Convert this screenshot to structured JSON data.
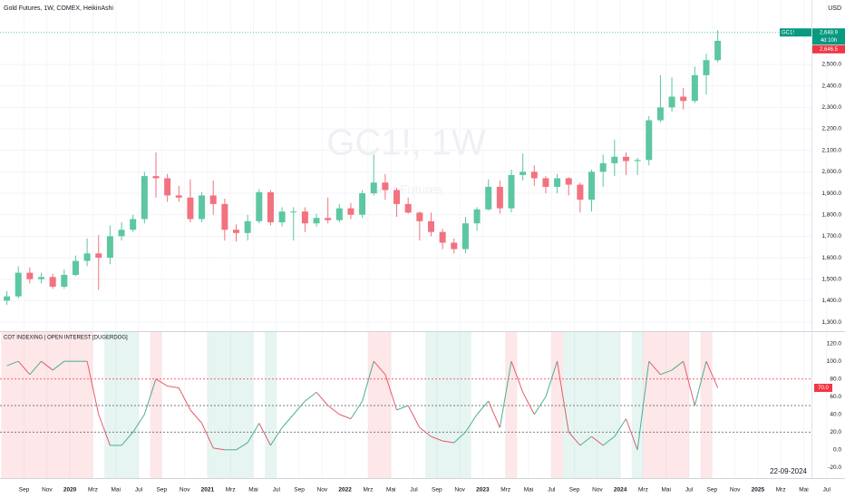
{
  "chart_data": [
    {
      "type": "candlestick",
      "title": "Gold Futures, 1W, COMEX, HeikinAshi",
      "watermark": "GC1!, 1W",
      "watermark_subtitle": "Gold Futures",
      "currency": "USD",
      "up_color": "#5cc7a0",
      "down_color": "#f2727f",
      "x": [
        -5.5,
        -4.5,
        -3.5,
        -2.5,
        -1.5,
        -0.5,
        0.5,
        1.5,
        2.5,
        3.5,
        4.5,
        5.5,
        6.5,
        7.5,
        8.5,
        9.5,
        10.5,
        11.5,
        12.5,
        13.5,
        14.5,
        15.5,
        16.5,
        17.5,
        18.5,
        19.5,
        20.5,
        21.5,
        22.5,
        23.5,
        24.5,
        25.5,
        26.5,
        27.5,
        28.5,
        29.5,
        30.5,
        31.5,
        32.5,
        33.5,
        34.5,
        35.5,
        36.5,
        37.5,
        38.5,
        39.5,
        40.5,
        41.5,
        42.5,
        43.5,
        44.5,
        45.5,
        46.5,
        47.5,
        48.5,
        49.5,
        50.5,
        51.5,
        52.5,
        53.5,
        54.5,
        55.5,
        56.5
      ],
      "open": [
        1400,
        1420,
        1530,
        1500,
        1510,
        1465,
        1520,
        1585,
        1620,
        1600,
        1700,
        1730,
        1780,
        1980,
        1970,
        1890,
        1880,
        1780,
        1890,
        1850,
        1730,
        1715,
        1770,
        1905,
        1765,
        1815,
        1815,
        1760,
        1785,
        1775,
        1830,
        1800,
        1900,
        1950,
        1915,
        1850,
        1810,
        1770,
        1720,
        1670,
        1640,
        1760,
        1825,
        1930,
        1830,
        1985,
        2000,
        1970,
        1930,
        1970,
        1940,
        1870,
        2000,
        2040,
        2070,
        2050,
        2055,
        2240,
        2300,
        2350,
        2330,
        2450,
        2520
      ],
      "high": [
        1445,
        1560,
        1555,
        1530,
        1525,
        1545,
        1610,
        1690,
        1705,
        1750,
        1765,
        1800,
        2000,
        2090,
        1990,
        1935,
        1965,
        1905,
        1960,
        1875,
        1755,
        1800,
        1920,
        1915,
        1835,
        1835,
        1835,
        1805,
        1880,
        1850,
        1855,
        1915,
        2080,
        1990,
        1925,
        1880,
        1815,
        1810,
        1735,
        1690,
        1790,
        1835,
        1965,
        1960,
        2010,
        2085,
        2030,
        1980,
        1990,
        1975,
        1950,
        2010,
        2080,
        2150,
        2090,
        2065,
        2260,
        2450,
        2440,
        2390,
        2490,
        2550,
        2660
      ],
      "low": [
        1380,
        1410,
        1480,
        1480,
        1455,
        1455,
        1515,
        1560,
        1450,
        1570,
        1680,
        1720,
        1760,
        1880,
        1860,
        1860,
        1765,
        1765,
        1800,
        1680,
        1675,
        1680,
        1760,
        1750,
        1745,
        1680,
        1720,
        1745,
        1760,
        1765,
        1780,
        1785,
        1890,
        1870,
        1790,
        1805,
        1680,
        1700,
        1640,
        1620,
        1620,
        1725,
        1820,
        1805,
        1810,
        1960,
        1935,
        1900,
        1900,
        1890,
        1810,
        1815,
        1930,
        1980,
        1985,
        1985,
        2030,
        2230,
        2280,
        2290,
        2320,
        2360,
        2510
      ],
      "close": [
        1420,
        1530,
        1500,
        1510,
        1465,
        1520,
        1585,
        1620,
        1600,
        1700,
        1730,
        1780,
        1980,
        1970,
        1890,
        1880,
        1780,
        1890,
        1850,
        1730,
        1715,
        1770,
        1905,
        1765,
        1815,
        1815,
        1760,
        1785,
        1775,
        1830,
        1800,
        1900,
        1950,
        1915,
        1850,
        1810,
        1770,
        1720,
        1670,
        1640,
        1760,
        1825,
        1930,
        1830,
        1985,
        2000,
        1970,
        1930,
        1970,
        1940,
        1870,
        2000,
        2040,
        2070,
        2050,
        2055,
        2240,
        2300,
        2350,
        2330,
        2450,
        2520,
        2610
      ],
      "xlim": [
        -6.1,
        67.6
      ],
      "ylim": [
        1258,
        2800
      ],
      "yticks": [
        {
          "value": 1300,
          "label": "1,300.0"
        },
        {
          "value": 1400,
          "label": "1,400.0"
        },
        {
          "value": 1500,
          "label": "1,500.0"
        },
        {
          "value": 1600,
          "label": "1,600.0"
        },
        {
          "value": 1700,
          "label": "1,700.0"
        },
        {
          "value": 1800,
          "label": "1,800.0"
        },
        {
          "value": 1900,
          "label": "1,900.0"
        },
        {
          "value": 2000,
          "label": "2,000.0"
        },
        {
          "value": 2100,
          "label": "2,100.0"
        },
        {
          "value": 2200,
          "label": "2,200.0"
        },
        {
          "value": 2300,
          "label": "2,300.0"
        },
        {
          "value": 2400,
          "label": "2,400.0"
        },
        {
          "value": 2500,
          "label": "2,500.0"
        }
      ],
      "grid": true,
      "last_price": {
        "value": 2648.9,
        "label": "2,648.9"
      },
      "symbol": "GC1!",
      "countdown": "4d 10h",
      "prev_price": {
        "value": 2646.5,
        "label": "2,646.5"
      }
    },
    {
      "type": "line",
      "title": "COT INDEXING | OPEN INTEREST [DUGERDOG]",
      "up_color": "#4caf8f",
      "down_color": "#e35d6a",
      "x": [
        -5.5,
        -4.5,
        -3.5,
        -2.5,
        -1.5,
        -0.5,
        0.5,
        1.5,
        2.5,
        3.5,
        4.5,
        5.5,
        6.5,
        7.5,
        8.5,
        9.5,
        10.5,
        11.5,
        12.5,
        13.5,
        14.5,
        15.5,
        16.5,
        17.5,
        18.5,
        19.5,
        20.5,
        21.5,
        22.5,
        23.5,
        24.5,
        25.5,
        26.5,
        27.5,
        28.5,
        29.5,
        30.5,
        31.5,
        32.5,
        33.5,
        34.5,
        35.5,
        36.5,
        37.5,
        38.5,
        39.5,
        40.5,
        41.5,
        42.5,
        43.5,
        44.5,
        45.5,
        46.5,
        47.5,
        48.5,
        49.5,
        50.5,
        51.5,
        52.5,
        53.5,
        54.5,
        55.5,
        56.5
      ],
      "values": [
        95,
        100,
        85,
        100,
        90,
        100,
        100,
        100,
        40,
        5,
        5,
        20,
        40,
        80,
        72,
        70,
        45,
        30,
        2,
        0,
        0,
        8,
        30,
        5,
        25,
        40,
        55,
        65,
        50,
        40,
        35,
        55,
        100,
        85,
        45,
        50,
        25,
        15,
        10,
        8,
        20,
        40,
        55,
        25,
        100,
        65,
        40,
        60,
        100,
        20,
        5,
        15,
        5,
        15,
        35,
        0,
        100,
        85,
        90,
        100,
        50,
        100,
        70
      ],
      "last_value_label": "70.0",
      "xlim": [
        -6.1,
        67.6
      ],
      "ylim": [
        -32,
        133
      ],
      "yticks": [
        {
          "value": 120,
          "label": "120.0"
        },
        {
          "value": 100,
          "label": "100.0"
        },
        {
          "value": 80,
          "label": "80.0"
        },
        {
          "value": 60,
          "label": "60.0"
        },
        {
          "value": 40,
          "label": "40.0"
        },
        {
          "value": 20,
          "label": "20.0"
        },
        {
          "value": 0,
          "label": "0.0"
        },
        {
          "value": -20,
          "label": "-20.0"
        }
      ],
      "levels": [
        80,
        50,
        20
      ],
      "xticks": [
        {
          "value": -4,
          "label": "Sep"
        },
        {
          "value": -2,
          "label": "Nov"
        },
        {
          "value": 0,
          "label": "2020"
        },
        {
          "value": 2,
          "label": "Mrz"
        },
        {
          "value": 4,
          "label": "Mai"
        },
        {
          "value": 6,
          "label": "Jul"
        },
        {
          "value": 8,
          "label": "Sep"
        },
        {
          "value": 10,
          "label": "Nov"
        },
        {
          "value": 12,
          "label": "2021"
        },
        {
          "value": 14,
          "label": "Mrz"
        },
        {
          "value": 16,
          "label": "Mai"
        },
        {
          "value": 18,
          "label": "Jul"
        },
        {
          "value": 20,
          "label": "Sep"
        },
        {
          "value": 22,
          "label": "Nov"
        },
        {
          "value": 24,
          "label": "2022"
        },
        {
          "value": 26,
          "label": "Mrz"
        },
        {
          "value": 28,
          "label": "Mai"
        },
        {
          "value": 30,
          "label": "Jul"
        },
        {
          "value": 32,
          "label": "Sep"
        },
        {
          "value": 34,
          "label": "Nov"
        },
        {
          "value": 36,
          "label": "2023"
        },
        {
          "value": 38,
          "label": "Mrz"
        },
        {
          "value": 40,
          "label": "Mai"
        },
        {
          "value": 42,
          "label": "Jul"
        },
        {
          "value": 44,
          "label": "Sep"
        },
        {
          "value": 46,
          "label": "Nov"
        },
        {
          "value": 48,
          "label": "2024"
        },
        {
          "value": 50,
          "label": "Mrz"
        },
        {
          "value": 52,
          "label": "Mai"
        },
        {
          "value": 54,
          "label": "Jul"
        },
        {
          "value": 56,
          "label": "Sep"
        },
        {
          "value": 58,
          "label": "Nov"
        },
        {
          "value": 60,
          "label": "2025"
        },
        {
          "value": 62,
          "label": "Mrz"
        },
        {
          "value": 64,
          "label": "Mai"
        },
        {
          "value": 66,
          "label": "Jul"
        }
      ],
      "date_label": "22-09-2024"
    }
  ]
}
